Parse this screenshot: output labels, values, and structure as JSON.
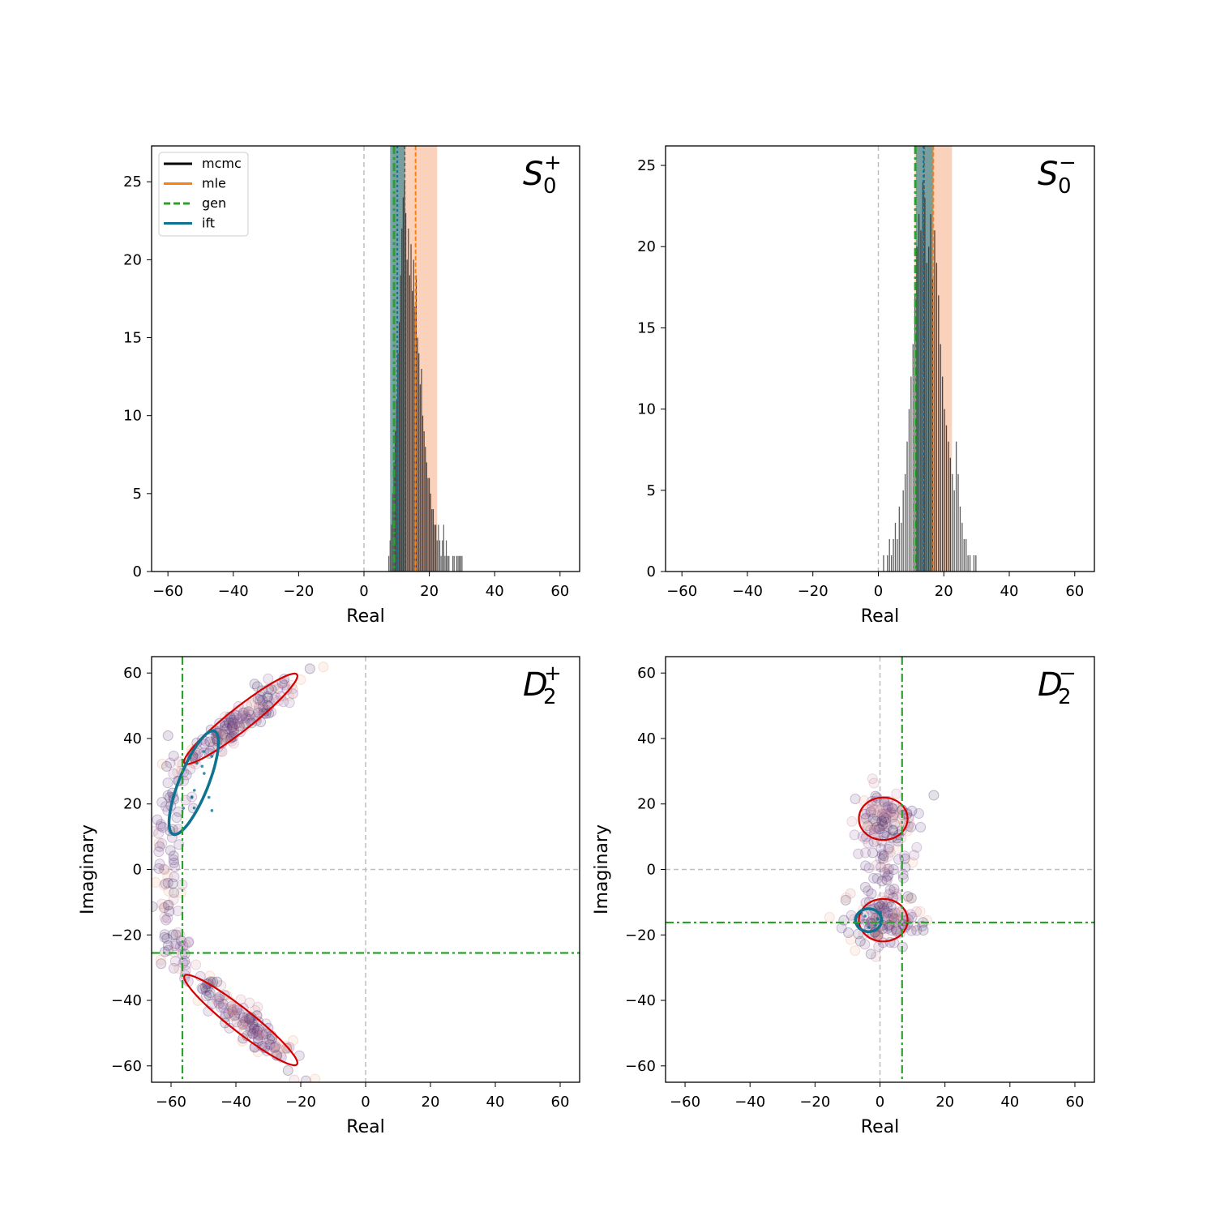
{
  "colors": {
    "mcmc": "#000000",
    "mle": "#ff7f0e",
    "gen": "#2ca02c",
    "ift": "#0f7290",
    "ellipse": "#d40000",
    "zero_line": "#bfbfbf",
    "hist_bar": "#505050",
    "mle_band": "#f6b48f",
    "ift_band": "#4e8c94"
  },
  "legend": {
    "entries": [
      {
        "label": "mcmc",
        "color": "#000000",
        "style": "solid"
      },
      {
        "label": "mle",
        "color": "#ff7f0e",
        "style": "solid"
      },
      {
        "label": "gen",
        "color": "#2ca02c",
        "style": "dashed"
      },
      {
        "label": "ift",
        "color": "#0f7290",
        "style": "solid"
      }
    ]
  },
  "chart_data": [
    {
      "type": "bar",
      "panel": "S0+",
      "title": {
        "base": "S",
        "sub": "0",
        "sup": "+"
      },
      "xlabel": "Real",
      "ylabel": "",
      "xlim": [
        -65,
        66
      ],
      "ylim": [
        0,
        27.3
      ],
      "xticks": [
        "−60",
        "−40",
        "−20",
        "0",
        "20",
        "40",
        "60"
      ],
      "xtick_values": [
        -60,
        -40,
        -20,
        0,
        20,
        40,
        60
      ],
      "yticks": [
        "0",
        "5",
        "10",
        "15",
        "20",
        "25"
      ],
      "ytick_values": [
        0,
        5,
        10,
        15,
        20,
        25
      ],
      "histogram": {
        "x": [
          7.6,
          8.0,
          8.4,
          8.8,
          9.2,
          9.6,
          10.0,
          10.4,
          10.8,
          11.2,
          11.6,
          12.0,
          12.4,
          12.8,
          13.2,
          13.6,
          14.0,
          14.4,
          14.8,
          15.2,
          15.6,
          16.0,
          16.4,
          16.8,
          17.2,
          17.6,
          18.0,
          18.4,
          18.8,
          19.2,
          19.6,
          20.0,
          20.4,
          20.8,
          21.2,
          21.6,
          22.0,
          22.4,
          22.8,
          23.2,
          23.6,
          24.0,
          24.4,
          24.8,
          25.2,
          25.6,
          26.0,
          26.4,
          26.8,
          27.2,
          27.6,
          28.0,
          28.4,
          28.8,
          29.2,
          29.6,
          30.0
        ],
        "counts": [
          1,
          2,
          3,
          5,
          7,
          9,
          11,
          14,
          16,
          19,
          22,
          24,
          25,
          23,
          20,
          22,
          19,
          21,
          18,
          20,
          17,
          19,
          15,
          14,
          12,
          13,
          10,
          9,
          8,
          7,
          6,
          6,
          5,
          4,
          4,
          3,
          3,
          2,
          3,
          2,
          1,
          2,
          3,
          1,
          2,
          1,
          1,
          0,
          0,
          1,
          1,
          0,
          1,
          1,
          1,
          1,
          1
        ]
      },
      "mcmc_mean": 12.5,
      "mle_mean": 15.8,
      "mle_band": [
        8.8,
        22.4
      ],
      "ift_mean": 10.2,
      "ift_band": [
        8.0,
        12.6
      ],
      "gen_value": 9.2
    },
    {
      "type": "bar",
      "panel": "S0-",
      "title": {
        "base": "S",
        "sub": "0",
        "sup": "−"
      },
      "xlabel": "Real",
      "ylabel": "",
      "xlim": [
        -65,
        66
      ],
      "ylim": [
        0,
        26.2
      ],
      "xticks": [
        "−60",
        "−40",
        "−20",
        "0",
        "20",
        "40",
        "60"
      ],
      "xtick_values": [
        -60,
        -40,
        -20,
        0,
        20,
        40,
        60
      ],
      "yticks": [
        "0",
        "5",
        "10",
        "15",
        "20",
        "25"
      ],
      "ytick_values": [
        0,
        5,
        10,
        15,
        20,
        25
      ],
      "histogram": {
        "x": [
          1.6,
          2.2,
          2.8,
          3.4,
          4.0,
          4.6,
          5.2,
          5.8,
          6.4,
          7.0,
          7.6,
          8.2,
          8.8,
          9.4,
          10.0,
          10.6,
          11.2,
          11.8,
          12.4,
          13.0,
          13.6,
          14.2,
          14.8,
          15.4,
          16.0,
          16.6,
          17.2,
          17.8,
          18.4,
          19.0,
          19.6,
          20.2,
          20.8,
          21.4,
          22.0,
          22.6,
          23.2,
          23.8,
          24.4,
          25.0,
          25.6,
          26.2,
          26.8,
          27.4,
          28.0,
          28.6,
          29.2,
          29.8
        ],
        "counts": [
          1,
          0,
          1,
          2,
          1,
          2,
          3,
          2,
          4,
          3,
          5,
          6,
          8,
          10,
          12,
          14,
          17,
          20,
          22,
          21,
          24,
          23,
          19,
          20,
          22,
          18,
          21,
          19,
          17,
          14,
          12,
          10,
          9,
          8,
          7,
          6,
          5,
          8,
          6,
          4,
          3,
          2,
          2,
          1,
          1,
          0,
          1,
          1
        ]
      },
      "mcmc_mean": 14.0,
      "mle_mean": 16.8,
      "mle_band": [
        11.0,
        22.5
      ],
      "ift_mean": 13.8,
      "ift_band": [
        11.5,
        16.8
      ],
      "gen_value": 11.3
    },
    {
      "type": "scatter",
      "panel": "D2+",
      "title": {
        "base": "D",
        "sub": "2",
        "sup": "+"
      },
      "xlabel": "Real",
      "ylabel": "Imaginary",
      "xlim": [
        -66,
        66
      ],
      "ylim": [
        -65,
        65
      ],
      "xticks": [
        "−60",
        "−40",
        "−20",
        "0",
        "20",
        "40",
        "60"
      ],
      "xtick_values": [
        -60,
        -40,
        -20,
        0,
        20,
        40,
        60
      ],
      "yticks": [
        "−60",
        "−40",
        "−20",
        "0",
        "20",
        "40",
        "60"
      ],
      "ytick_values": [
        -60,
        -40,
        -20,
        0,
        20,
        40,
        60
      ],
      "gen_point": [
        -56.5,
        -25.5
      ],
      "clusters": [
        {
          "cx": -38,
          "cy": 46,
          "sx": 9,
          "sy": 7,
          "corr": 0.92,
          "n": 150
        },
        {
          "cx": -36,
          "cy": -47,
          "sx": 8,
          "sy": 7,
          "corr": -0.92,
          "n": 140
        },
        {
          "cx": -61,
          "cy": 0,
          "sx": 2.5,
          "sy": 12,
          "corr": 0.1,
          "n": 60
        },
        {
          "cx": -58,
          "cy": 24,
          "sx": 3,
          "sy": 6,
          "corr": 0.4,
          "n": 25
        },
        {
          "cx": -58,
          "cy": -25,
          "sx": 3,
          "sy": 6,
          "corr": -0.4,
          "n": 25
        }
      ],
      "ellipses": [
        {
          "kind": "mle",
          "cx": -38.5,
          "cy": 46,
          "a": 22,
          "b": 3.5,
          "angle_deg": 38
        },
        {
          "kind": "mle",
          "cx": -38.5,
          "cy": -46,
          "a": 22,
          "b": 3.5,
          "angle_deg": -38
        },
        {
          "kind": "ift",
          "cx": -53,
          "cy": 26.5,
          "a": 17,
          "b": 4.5,
          "angle_deg": 68
        }
      ]
    },
    {
      "type": "scatter",
      "panel": "D2-",
      "title": {
        "base": "D",
        "sub": "2",
        "sup": "−"
      },
      "xlabel": "Real",
      "ylabel": "Imaginary",
      "xlim": [
        -66,
        66
      ],
      "ylim": [
        -65,
        65
      ],
      "xticks": [
        "−60",
        "−40",
        "−20",
        "0",
        "20",
        "40",
        "60"
      ],
      "xtick_values": [
        -60,
        -40,
        -20,
        0,
        20,
        40,
        60
      ],
      "yticks": [
        "−60",
        "−40",
        "−20",
        "0",
        "20",
        "40",
        "60"
      ],
      "ytick_values": [
        -60,
        -40,
        -20,
        0,
        20,
        40,
        60
      ],
      "gen_point": [
        6.8,
        -16.2
      ],
      "clusters": [
        {
          "cx": 1.5,
          "cy": 15,
          "sx": 5,
          "sy": 4,
          "corr": 0,
          "n": 110
        },
        {
          "cx": 1,
          "cy": -16,
          "sx": 5.5,
          "sy": 4,
          "corr": 0,
          "n": 130
        },
        {
          "cx": 3,
          "cy": -1,
          "sx": 4,
          "sy": 6,
          "corr": 0,
          "n": 45
        }
      ],
      "ellipses": [
        {
          "kind": "mle",
          "cx": 1,
          "cy": 15.5,
          "a": 7.5,
          "b": 6.5,
          "angle_deg": 0
        },
        {
          "kind": "mle",
          "cx": 1,
          "cy": -15.5,
          "a": 7.5,
          "b": 6.5,
          "angle_deg": 0
        },
        {
          "kind": "ift",
          "cx": -3.5,
          "cy": -15.5,
          "a": 4,
          "b": 3.5,
          "angle_deg": 0
        }
      ]
    }
  ]
}
